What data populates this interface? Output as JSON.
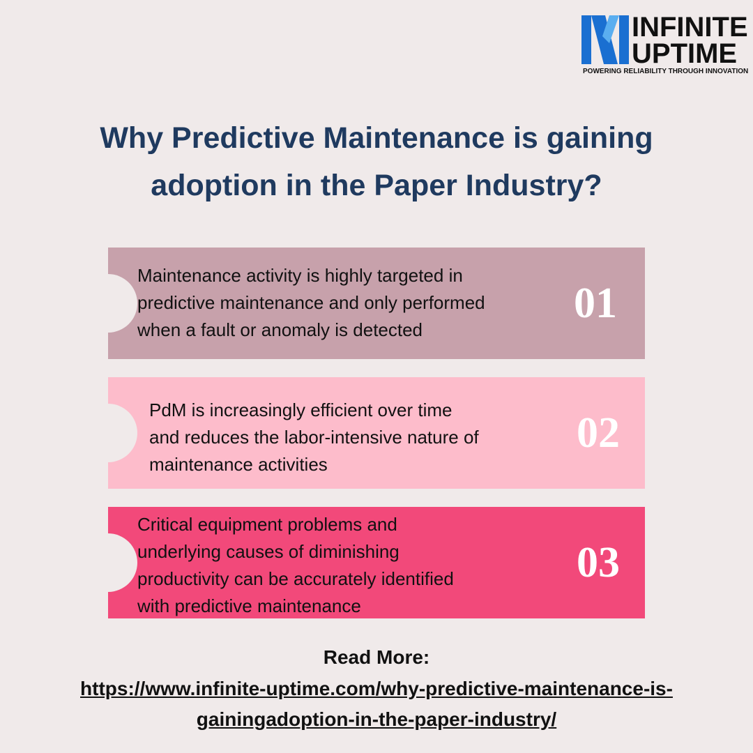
{
  "logo": {
    "line1": "INFINITE",
    "line2": "UPTIME",
    "tagline": "POWERING RELIABILITY THROUGH INNOVATION"
  },
  "title": {
    "lines": [
      "Why Predictive Maintenance is gaining",
      "adoption in the Paper Industry?"
    ]
  },
  "items": [
    {
      "lines": [
        "Maintenance activity is highly targeted in",
        "predictive maintenance and only performed",
        "when a fault or anomaly is detected"
      ],
      "number": "01"
    },
    {
      "lines": [
        "PdM is increasingly efficient over time",
        "and reduces the labor-intensive nature of",
        "maintenance activities"
      ],
      "number": "02"
    },
    {
      "lines": [
        "Critical equipment problems and",
        "underlying causes of diminishing",
        "productivity can be accurately identified",
        "with predictive maintenance"
      ],
      "number": "03"
    }
  ],
  "read_more": {
    "label": "Read More:",
    "url_lines": [
      "https://www.infinite-uptime.com/why-predictive-maintenance-is-",
      "gainingadoption-in-the-paper-industry/"
    ]
  }
}
